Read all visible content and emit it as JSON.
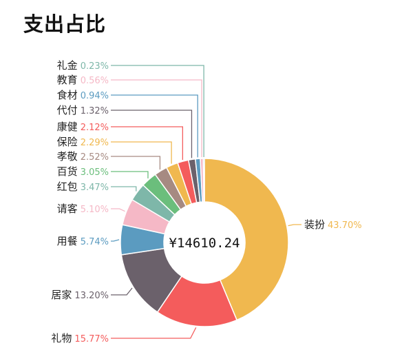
{
  "title": "支出占比",
  "chart_data": {
    "type": "pie",
    "variant": "donut",
    "center_label": "¥14610.24",
    "slices": [
      {
        "label": "装扮",
        "value": "43.70%",
        "pct": 43.7,
        "color": "#F0B84F"
      },
      {
        "label": "礼物",
        "value": "15.77%",
        "pct": 15.77,
        "color": "#F45C5C"
      },
      {
        "label": "居家",
        "value": "13.20%",
        "pct": 13.2,
        "color": "#6B616B"
      },
      {
        "label": "用餐",
        "value": "5.74%",
        "pct": 5.74,
        "color": "#5B9BC0"
      },
      {
        "label": "请客",
        "value": "5.10%",
        "pct": 5.1,
        "color": "#F5B8C6"
      },
      {
        "label": "红包",
        "value": "3.47%",
        "pct": 3.47,
        "color": "#7EB7A9"
      },
      {
        "label": "百货",
        "value": "3.05%",
        "pct": 3.05,
        "color": "#6BBE7C"
      },
      {
        "label": "孝敬",
        "value": "2.52%",
        "pct": 2.52,
        "color": "#A68A82"
      },
      {
        "label": "保险",
        "value": "2.29%",
        "pct": 2.29,
        "color": "#F0B84F"
      },
      {
        "label": "康健",
        "value": "2.12%",
        "pct": 2.12,
        "color": "#F45C5C"
      },
      {
        "label": "代付",
        "value": "1.32%",
        "pct": 1.32,
        "color": "#6B616B"
      },
      {
        "label": "食材",
        "value": "0.94%",
        "pct": 0.94,
        "color": "#5B9BC0"
      },
      {
        "label": "教育",
        "value": "0.56%",
        "pct": 0.56,
        "color": "#F5B8C6"
      },
      {
        "label": "礼金",
        "value": "0.23%",
        "pct": 0.23,
        "color": "#7EB7A9"
      }
    ]
  }
}
